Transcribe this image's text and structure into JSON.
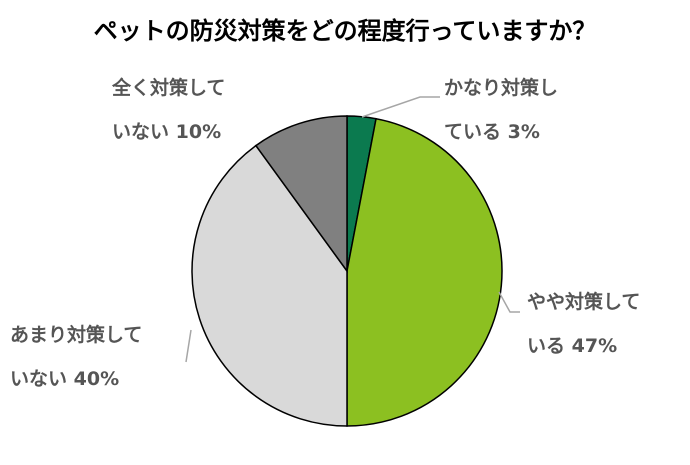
{
  "chart_data": {
    "type": "pie",
    "title": "ペットの防災対策をどの程度行っていますか？",
    "categories": [
      "かなり対策している",
      "やや対策している",
      "あまり対策していない",
      "全く対策していない"
    ],
    "values": [
      3,
      47,
      40,
      10
    ],
    "value_labels": [
      "3%",
      "47%",
      "40%",
      "10%"
    ],
    "colors": [
      "#0b7a4f",
      "#8cc021",
      "#d9d9d9",
      "#808080"
    ]
  }
}
